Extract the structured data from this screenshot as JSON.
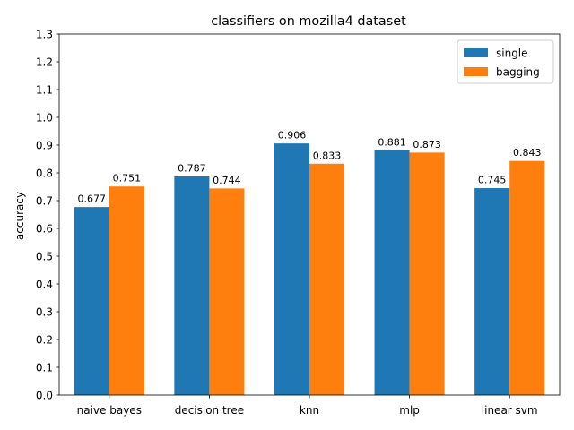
{
  "chart_data": {
    "type": "bar",
    "title": "classifiers on mozilla4 dataset",
    "xlabel": "",
    "ylabel": "accuracy",
    "ylim": [
      0,
      1.3
    ],
    "yticks": [
      "0.0",
      "0.1",
      "0.2",
      "0.3",
      "0.4",
      "0.5",
      "0.6",
      "0.7",
      "0.8",
      "0.9",
      "1.0",
      "1.1",
      "1.2",
      "1.3"
    ],
    "categories": [
      "naive bayes",
      "decision tree",
      "knn",
      "mlp",
      "linear svm"
    ],
    "series": [
      {
        "name": "single",
        "color": "#1f77b4",
        "values": [
          0.677,
          0.787,
          0.906,
          0.881,
          0.745
        ],
        "labels": [
          "0.677",
          "0.787",
          "0.906",
          "0.881",
          "0.745"
        ]
      },
      {
        "name": "bagging",
        "color": "#ff7f0e",
        "values": [
          0.751,
          0.744,
          0.833,
          0.873,
          0.843
        ],
        "labels": [
          "0.751",
          "0.744",
          "0.833",
          "0.873",
          "0.843"
        ]
      }
    ],
    "legend_position": "top-right",
    "grid": false
  }
}
